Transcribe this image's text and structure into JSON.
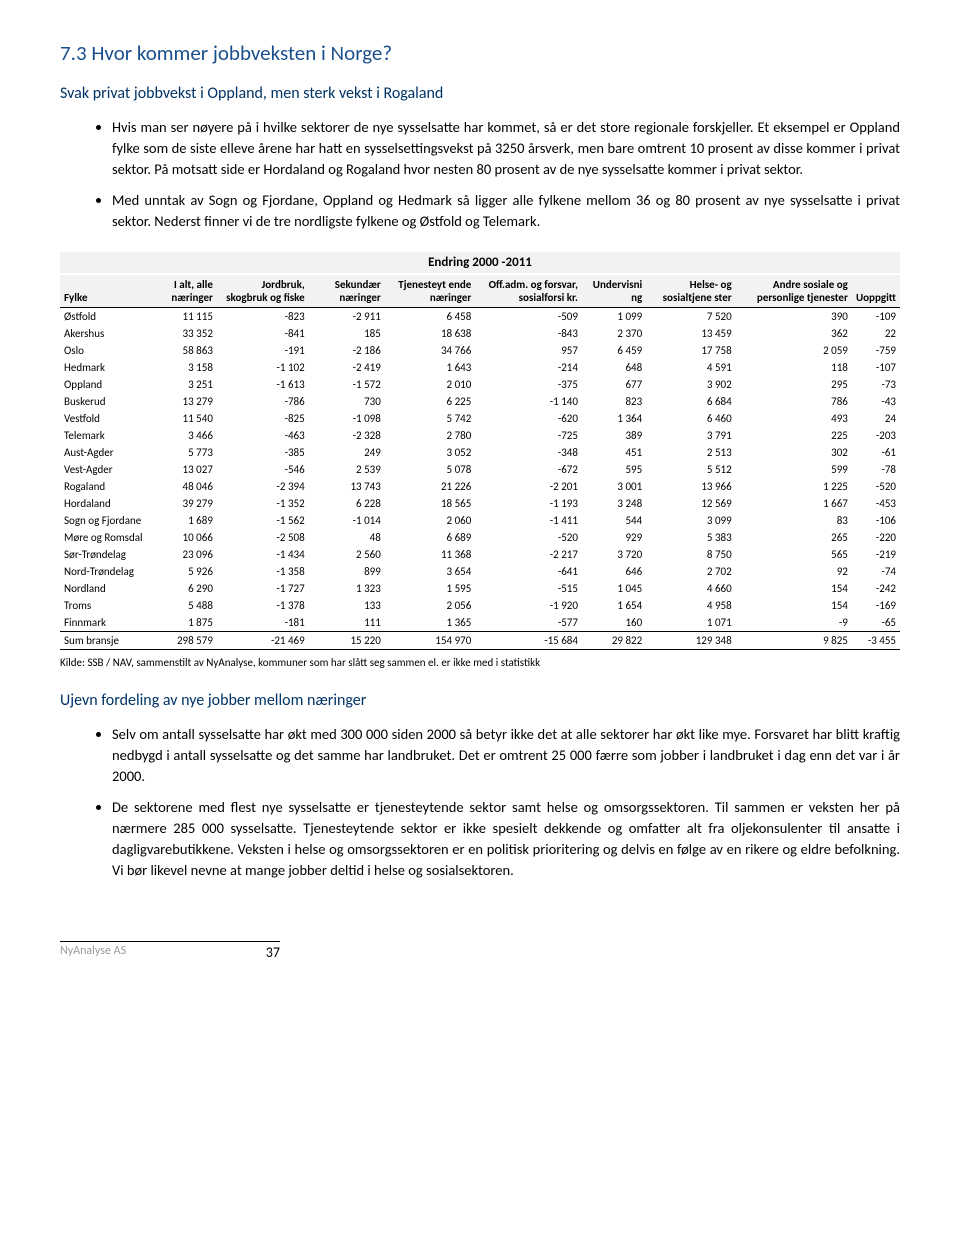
{
  "section": {
    "title": "7.3  Hvor kommer jobbveksten i Norge?",
    "subtitle": "Svak privat jobbvekst i Oppland, men sterk vekst i Rogaland",
    "bullets": [
      "Hvis man ser nøyere på i hvilke sektorer de nye sysselsatte har kommet, så er det store regionale forskjeller. Et eksempel er Oppland fylke som de siste elleve årene har hatt en sysselsettingsvekst på 3250 årsverk, men bare omtrent 10 prosent av disse kommer i privat sektor. På motsatt side er Hordaland og Rogaland hvor nesten 80 prosent av de nye sysselsatte kommer i privat sektor.",
      "Med unntak av Sogn og Fjordane, Oppland og Hedmark så ligger alle fylkene mellom 36 og 80 prosent av nye sysselsatte i privat sektor. Nederst finner vi de tre nordligste fylkene og Østfold og Telemark."
    ]
  },
  "table": {
    "caption": "Endring 2000 -2011",
    "columns": [
      "Fylke",
      "I alt, alle næringer",
      "Jordbruk, skogbruk og fiske",
      "Sekundær næringer",
      "Tjenesteyt ende næringer",
      "Off.adm. og forsvar, sosialforsi kr.",
      "Undervisni ng",
      "Helse- og sosialtjene ster",
      "Andre sosiale og personlige tjenester",
      "Uoppgitt"
    ],
    "rows": [
      [
        "Østfold",
        "11 115",
        "-823",
        "-2 911",
        "6 458",
        "-509",
        "1 099",
        "7 520",
        "390",
        "-109"
      ],
      [
        "Akershus",
        "33 352",
        "-841",
        "185",
        "18 638",
        "-843",
        "2 370",
        "13 459",
        "362",
        "22"
      ],
      [
        "Oslo",
        "58 863",
        "-191",
        "-2 186",
        "34 766",
        "957",
        "6 459",
        "17 758",
        "2 059",
        "-759"
      ],
      [
        "Hedmark",
        "3 158",
        "-1 102",
        "-2 419",
        "1 643",
        "-214",
        "648",
        "4 591",
        "118",
        "-107"
      ],
      [
        "Oppland",
        "3 251",
        "-1 613",
        "-1 572",
        "2 010",
        "-375",
        "677",
        "3 902",
        "295",
        "-73"
      ],
      [
        "Buskerud",
        "13 279",
        "-786",
        "730",
        "6 225",
        "-1 140",
        "823",
        "6 684",
        "786",
        "-43"
      ],
      [
        "Vestfold",
        "11 540",
        "-825",
        "-1 098",
        "5 742",
        "-620",
        "1 364",
        "6 460",
        "493",
        "24"
      ],
      [
        "Telemark",
        "3 466",
        "-463",
        "-2 328",
        "2 780",
        "-725",
        "389",
        "3 791",
        "225",
        "-203"
      ],
      [
        "Aust-Agder",
        "5 773",
        "-385",
        "249",
        "3 052",
        "-348",
        "451",
        "2 513",
        "302",
        "-61"
      ],
      [
        "Vest-Agder",
        "13 027",
        "-546",
        "2 539",
        "5 078",
        "-672",
        "595",
        "5 512",
        "599",
        "-78"
      ],
      [
        "Rogaland",
        "48 046",
        "-2 394",
        "13 743",
        "21 226",
        "-2 201",
        "3 001",
        "13 966",
        "1 225",
        "-520"
      ],
      [
        "Hordaland",
        "39 279",
        "-1 352",
        "6 228",
        "18 565",
        "-1 193",
        "3 248",
        "12 569",
        "1 667",
        "-453"
      ],
      [
        "Sogn og Fjordane",
        "1 689",
        "-1 562",
        "-1 014",
        "2 060",
        "-1 411",
        "544",
        "3 099",
        "83",
        "-106"
      ],
      [
        "Møre og Romsdal",
        "10 066",
        "-2 508",
        "48",
        "6 689",
        "-520",
        "929",
        "5 383",
        "265",
        "-220"
      ],
      [
        "Sør-Trøndelag",
        "23 096",
        "-1 434",
        "2 560",
        "11 368",
        "-2 217",
        "3 720",
        "8 750",
        "565",
        "-219"
      ],
      [
        "Nord-Trøndelag",
        "5 926",
        "-1 358",
        "899",
        "3 654",
        "-641",
        "646",
        "2 702",
        "92",
        "-74"
      ],
      [
        "Nordland",
        "6 290",
        "-1 727",
        "1 323",
        "1 595",
        "-515",
        "1 045",
        "4 660",
        "154",
        "-242"
      ],
      [
        "Troms",
        "5 488",
        "-1 378",
        "133",
        "2 056",
        "-1 920",
        "1 654",
        "4 958",
        "154",
        "-169"
      ],
      [
        "Finnmark",
        "1 875",
        "-181",
        "111",
        "1 365",
        "-577",
        "160",
        "1 071",
        "-9",
        "-65"
      ]
    ],
    "sum_row": [
      "Sum bransje",
      "298 579",
      "-21 469",
      "15 220",
      "154 970",
      "-15 684",
      "29 822",
      "129 348",
      "9 825",
      "-3 455"
    ],
    "source": "Kilde: SSB / NAV, sammenstilt av NyAnalyse, kommuner som har slått seg sammen el. er ikke med i statistikk"
  },
  "section2": {
    "title": "Ujevn fordeling av nye jobber mellom næringer",
    "bullets": [
      "Selv om antall sysselsatte har økt med 300 000 siden 2000 så betyr ikke det at alle sektorer har økt like mye. Forsvaret har blitt kraftig nedbygd i antall sysselsatte og det samme har landbruket. Det er omtrent 25 000 færre som jobber i landbruket i dag enn det var i år 2000.",
      "De sektorene med flest nye sysselsatte er tjenesteytende sektor samt helse og omsorgssektoren. Til sammen er veksten her på nærmere 285 000 sysselsatte. Tjenesteytende sektor er ikke spesielt dekkende og omfatter alt fra oljekonsulenter til ansatte i dagligvarebutikkene. Veksten i helse og omsorgssektoren er en politisk prioritering og delvis en følge av en rikere og eldre befolkning. Vi bør likevel nevne at mange jobber deltid i helse og sosialsektoren."
    ]
  },
  "footer": {
    "org": "NyAnalyse AS",
    "page": "37"
  }
}
